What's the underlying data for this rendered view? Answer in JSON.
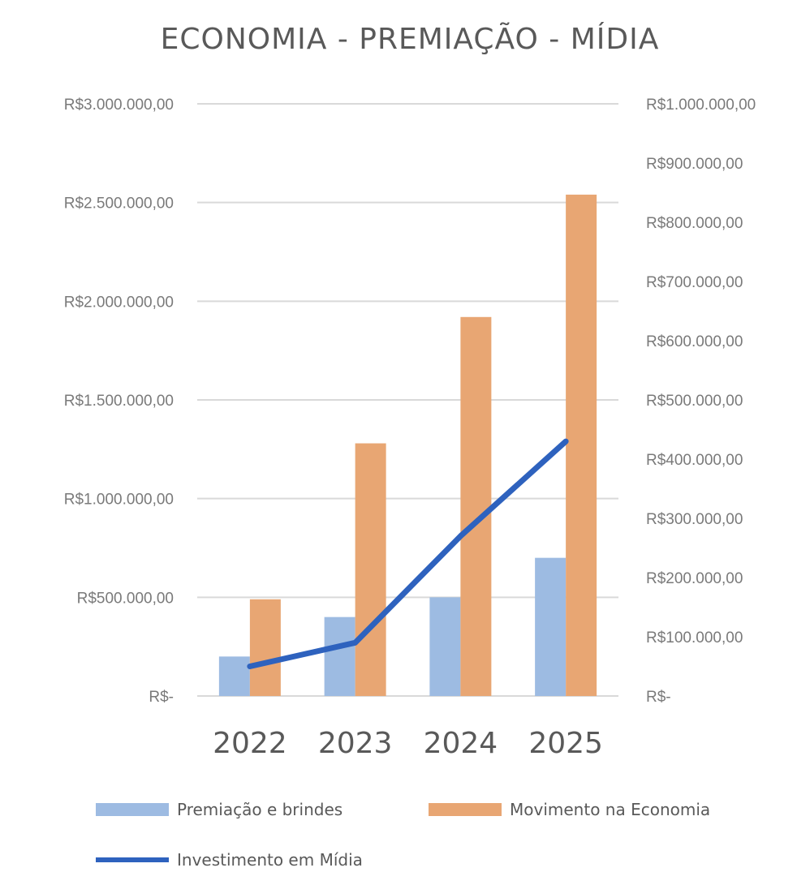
{
  "chart_data": {
    "type": "bar",
    "title": "ECONOMIA - PREMIAÇÃO - MÍDIA",
    "categories": [
      "2022",
      "2023",
      "2024",
      "2025"
    ],
    "primary_axis": {
      "ylim": [
        0,
        3000000
      ],
      "ticks": [
        {
          "value": 0,
          "label": "R$-"
        },
        {
          "value": 500000,
          "label": "R$500.000,00"
        },
        {
          "value": 1000000,
          "label": "R$1.000.000,00"
        },
        {
          "value": 1500000,
          "label": "R$1.500.000,00"
        },
        {
          "value": 2000000,
          "label": "R$2.000.000,00"
        },
        {
          "value": 2500000,
          "label": "R$2.500.000,00"
        },
        {
          "value": 3000000,
          "label": "R$3.000.000,00"
        }
      ]
    },
    "secondary_axis": {
      "ylim": [
        0,
        1000000
      ],
      "ticks": [
        {
          "value": 0,
          "label": "R$-"
        },
        {
          "value": 100000,
          "label": "R$100.000,00"
        },
        {
          "value": 200000,
          "label": "R$200.000,00"
        },
        {
          "value": 300000,
          "label": "R$300.000,00"
        },
        {
          "value": 400000,
          "label": "R$400.000,00"
        },
        {
          "value": 500000,
          "label": "R$500.000,00"
        },
        {
          "value": 600000,
          "label": "R$600.000,00"
        },
        {
          "value": 700000,
          "label": "R$700.000,00"
        },
        {
          "value": 800000,
          "label": "R$800.000,00"
        },
        {
          "value": 900000,
          "label": "R$900.000,00"
        },
        {
          "value": 1000000,
          "label": "R$1.000.000,00"
        }
      ]
    },
    "series": [
      {
        "name": "Premiação e brindes",
        "type": "bar",
        "axis": "primary",
        "color": "#9DBBE2",
        "values": [
          200000,
          400000,
          500000,
          700000
        ]
      },
      {
        "name": "Movimento na Economia",
        "type": "bar",
        "axis": "primary",
        "color": "#E8A673",
        "values": [
          490000,
          1280000,
          1920000,
          2540000
        ]
      },
      {
        "name": "Investimento em Mídia",
        "type": "line",
        "axis": "secondary",
        "color": "#2E62BE",
        "values": [
          50000,
          90000,
          270000,
          430000
        ]
      }
    ],
    "grid": true,
    "legend_position": "bottom"
  }
}
